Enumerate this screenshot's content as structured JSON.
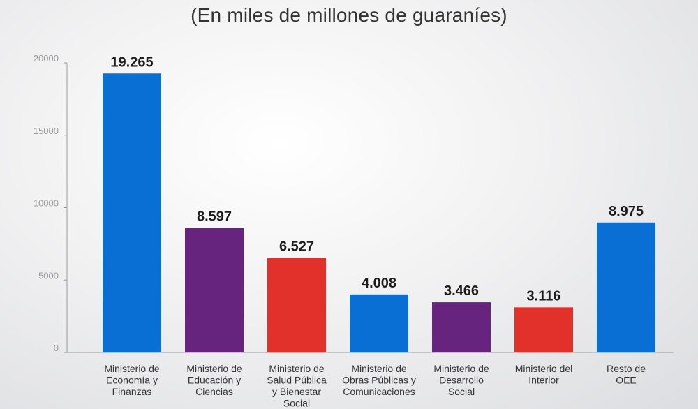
{
  "chart_data": {
    "type": "bar",
    "title": "(En miles de millones de guaraníes)",
    "xlabel": "",
    "ylabel": "",
    "ylim": [
      0,
      20000
    ],
    "yticks": [
      0,
      5000,
      10000,
      15000,
      20000
    ],
    "yticks_labels": [
      "0",
      "5000",
      "10000",
      "15000",
      "20000"
    ],
    "grid": false,
    "categories": [
      [
        "Ministerio de",
        "Economía y",
        "Finanzas"
      ],
      [
        "Ministerio de",
        "Educación y",
        "Ciencias"
      ],
      [
        "Ministerio de",
        "Salud Pública",
        "y Bienestar",
        "Social"
      ],
      [
        "Ministerio de",
        "Obras Públicas y",
        "Comunicaciones"
      ],
      [
        "Ministerio de",
        "Desarrollo",
        "Social"
      ],
      [
        "Ministerio del",
        "Interior"
      ],
      [
        "Resto de",
        "OEE"
      ]
    ],
    "values": [
      19265,
      8597,
      6527,
      4008,
      3466,
      3116,
      8975
    ],
    "value_labels": [
      "19.265",
      "8.597",
      "6.527",
      "4.008",
      "3.466",
      "3.116",
      "8.975"
    ],
    "bar_colors": [
      "#0a6fd4",
      "#67247e",
      "#e2312b",
      "#0a6fd4",
      "#67247e",
      "#e2312b",
      "#0a6fd4"
    ]
  }
}
